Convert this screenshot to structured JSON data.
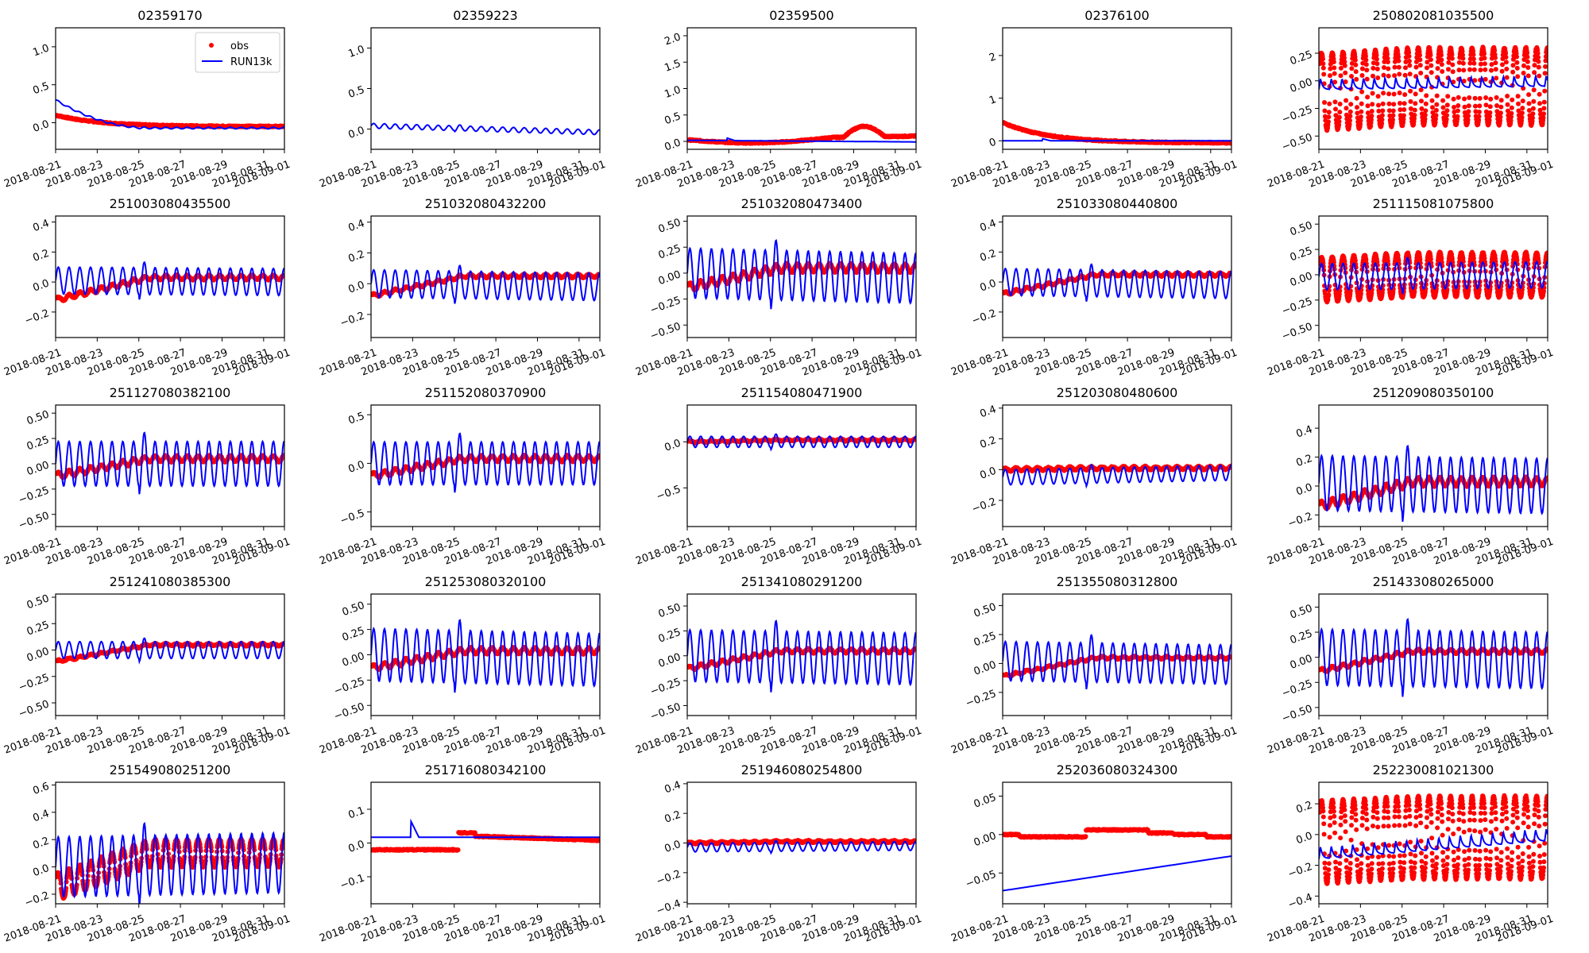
{
  "chart_data": {
    "type": "line",
    "layout": "5x5 grid of small multiples",
    "legend": {
      "placement": "upper-right of first panel",
      "entries": [
        {
          "name": "obs",
          "style": "red dots",
          "color": "#ff0000"
        },
        {
          "name": "RUN13k",
          "style": "blue line",
          "color": "#0000ff"
        }
      ]
    },
    "x_axis": {
      "range": [
        "2018-08-21",
        "2018-09-01"
      ],
      "tick_labels": [
        "2018-08-21",
        "2018-08-23",
        "2018-08-25",
        "2018-08-27",
        "2018-08-29",
        "2018-08-31",
        "2018-09-01"
      ],
      "tick_days": [
        0,
        2,
        4,
        6,
        8,
        10,
        11
      ]
    },
    "colors": {
      "obs": "#ff0000",
      "model": "#0000ff"
    },
    "panels": [
      {
        "title": "02359170",
        "ylim": [
          -0.35,
          1.25
        ],
        "yticks": [
          0.0,
          0.5,
          1.0
        ],
        "ytick_labels": [
          "0.0",
          "0.5",
          "1.0"
        ],
        "obs": {
          "start": 0.1,
          "end": -0.05,
          "amp": 0,
          "shape": "decay"
        },
        "model": {
          "start": 0.3,
          "end": -0.07,
          "amp": 0.01,
          "shape": "decay"
        },
        "legend": true
      },
      {
        "title": "02359223",
        "ylim": [
          -0.25,
          1.25
        ],
        "yticks": [
          0.0,
          0.5,
          1.0
        ],
        "ytick_labels": [
          "0.0",
          "0.5",
          "1.0"
        ],
        "obs": null,
        "model": {
          "start": 0.04,
          "end": -0.04,
          "amp": 0.03,
          "shape": "wave"
        }
      },
      {
        "title": "02359500",
        "ylim": [
          -0.15,
          2.15
        ],
        "yticks": [
          0.0,
          0.5,
          1.0,
          1.5,
          2.0
        ],
        "ytick_labels": [
          "0.0",
          "0.5",
          "1.0",
          "1.5",
          "2.0"
        ],
        "obs": {
          "start": 0.03,
          "end": 0.1,
          "amp": 0,
          "shape": "bump"
        },
        "model": {
          "start": 0.02,
          "end": -0.01,
          "amp": 0,
          "shape": "flat"
        }
      },
      {
        "title": "02376100",
        "ylim": [
          -0.2,
          2.65
        ],
        "yticks": [
          0,
          1,
          2
        ],
        "ytick_labels": [
          "0",
          "1",
          "2"
        ],
        "obs": {
          "start": 0.43,
          "end": -0.05,
          "amp": 0,
          "shape": "decay"
        },
        "model": {
          "start": 0.0,
          "end": 0.0,
          "amp": 0,
          "shape": "flat"
        }
      },
      {
        "title": "250802081035500",
        "ylim": [
          -0.62,
          0.48
        ],
        "yticks": [
          -0.5,
          -0.25,
          0.0,
          0.25
        ],
        "ytick_labels": [
          "−0.50",
          "−0.25",
          "0.00",
          "0.25"
        ],
        "obs": {
          "start": -0.1,
          "end": -0.05,
          "amp": 0.35,
          "shape": "tide"
        },
        "model": {
          "start": -0.03,
          "end": 0.0,
          "amp": 0.1,
          "shape": "spike"
        }
      },
      {
        "title": "251003080435500",
        "ylim": [
          -0.37,
          0.44
        ],
        "yticks": [
          -0.2,
          0.0,
          0.2,
          0.4
        ],
        "ytick_labels": [
          "−0.2",
          "0.0",
          "0.2",
          "0.4"
        ],
        "obs": {
          "start": -0.12,
          "end": 0.03,
          "amp": 0.015,
          "shape": "rise"
        },
        "model": {
          "start": 0.01,
          "end": 0.0,
          "amp": 0.09,
          "shape": "wave"
        }
      },
      {
        "title": "251032080432200",
        "ylim": [
          -0.35,
          0.44
        ],
        "yticks": [
          -0.2,
          0.0,
          0.2,
          0.4
        ],
        "ytick_labels": [
          "−0.2",
          "0.0",
          "0.2",
          "0.4"
        ],
        "obs": {
          "start": -0.08,
          "end": 0.05,
          "amp": 0.01,
          "shape": "rise"
        },
        "model": {
          "start": 0.0,
          "end": -0.02,
          "amp": 0.09,
          "shape": "wave"
        }
      },
      {
        "title": "251032080473400",
        "ylim": [
          -0.62,
          0.55
        ],
        "yticks": [
          -0.5,
          -0.25,
          0.0,
          0.25,
          0.5
        ],
        "ytick_labels": [
          "−0.50",
          "−0.25",
          "0.00",
          "0.25",
          "0.50"
        ],
        "obs": {
          "start": -0.14,
          "end": 0.05,
          "amp": 0.04,
          "shape": "rise"
        },
        "model": {
          "start": 0.0,
          "end": -0.05,
          "amp": 0.24,
          "shape": "wave"
        }
      },
      {
        "title": "251033080440800",
        "ylim": [
          -0.37,
          0.44
        ],
        "yticks": [
          -0.2,
          0.0,
          0.2,
          0.4
        ],
        "ytick_labels": [
          "−0.2",
          "0.0",
          "0.2",
          "0.4"
        ],
        "obs": {
          "start": -0.08,
          "end": 0.05,
          "amp": 0.01,
          "shape": "rise"
        },
        "model": {
          "start": 0.0,
          "end": -0.02,
          "amp": 0.09,
          "shape": "wave"
        }
      },
      {
        "title": "251115081075800",
        "ylim": [
          -0.62,
          0.58
        ],
        "yticks": [
          -0.5,
          -0.25,
          0.0,
          0.25,
          0.5
        ],
        "ytick_labels": [
          "−0.50",
          "−0.25",
          "0.00",
          "0.25",
          "0.50"
        ],
        "obs": {
          "start": -0.05,
          "end": 0.0,
          "amp": 0.22,
          "shape": "tide"
        },
        "model": {
          "start": -0.02,
          "end": 0.0,
          "amp": 0.13,
          "shape": "wave"
        }
      },
      {
        "title": "251127080382100",
        "ylim": [
          -0.62,
          0.58
        ],
        "yticks": [
          -0.5,
          -0.25,
          0.0,
          0.25,
          0.5
        ],
        "ytick_labels": [
          "−0.50",
          "−0.25",
          "0.00",
          "0.25",
          "0.50"
        ],
        "obs": {
          "start": -0.12,
          "end": 0.05,
          "amp": 0.03,
          "shape": "rise"
        },
        "model": {
          "start": 0.0,
          "end": 0.0,
          "amp": 0.22,
          "shape": "wave"
        }
      },
      {
        "title": "251152080370900",
        "ylim": [
          -0.65,
          0.6
        ],
        "yticks": [
          -0.5,
          0.0,
          0.5
        ],
        "ytick_labels": [
          "−0.5",
          "0.0",
          "0.5"
        ],
        "obs": {
          "start": -0.13,
          "end": 0.05,
          "amp": 0.03,
          "shape": "rise"
        },
        "model": {
          "start": 0.0,
          "end": 0.0,
          "amp": 0.22,
          "shape": "wave"
        }
      },
      {
        "title": "251154080471900",
        "ylim": [
          -0.92,
          0.4
        ],
        "yticks": [
          -0.5,
          0.0
        ],
        "ytick_labels": [
          "−0.5",
          "0.0"
        ],
        "obs": {
          "start": 0.0,
          "end": 0.02,
          "amp": 0.01,
          "shape": "rise"
        },
        "model": {
          "start": 0.0,
          "end": 0.0,
          "amp": 0.06,
          "shape": "wave"
        }
      },
      {
        "title": "251203080480600",
        "ylim": [
          -0.37,
          0.42
        ],
        "yticks": [
          -0.2,
          0.0,
          0.2,
          0.4
        ],
        "ytick_labels": [
          "−0.2",
          "0.0",
          "0.2",
          "0.4"
        ],
        "obs": {
          "start": 0.0,
          "end": 0.01,
          "amp": 0.01,
          "shape": "rise"
        },
        "model": {
          "start": -0.05,
          "end": -0.02,
          "amp": 0.05,
          "shape": "wave"
        }
      },
      {
        "title": "251209080350100",
        "ylim": [
          -0.28,
          0.56
        ],
        "yticks": [
          -0.2,
          0.0,
          0.2,
          0.4
        ],
        "ytick_labels": [
          "−0.2",
          "0.0",
          "0.2",
          "0.4"
        ],
        "obs": {
          "start": -0.14,
          "end": 0.03,
          "amp": 0.03,
          "shape": "rise"
        },
        "model": {
          "start": 0.02,
          "end": 0.0,
          "amp": 0.19,
          "shape": "wave"
        }
      },
      {
        "title": "251241080385300",
        "ylim": [
          -0.62,
          0.53
        ],
        "yticks": [
          -0.5,
          -0.25,
          0.0,
          0.25,
          0.5
        ],
        "ytick_labels": [
          "−0.50",
          "−0.25",
          "0.00",
          "0.25",
          "0.50"
        ],
        "obs": {
          "start": -0.11,
          "end": 0.05,
          "amp": 0.01,
          "shape": "rise"
        },
        "model": {
          "start": 0.0,
          "end": 0.0,
          "amp": 0.08,
          "shape": "wave"
        }
      },
      {
        "title": "251253080320100",
        "ylim": [
          -0.6,
          0.6
        ],
        "yticks": [
          -0.5,
          -0.25,
          0.0,
          0.25,
          0.5
        ],
        "ytick_labels": [
          "−0.50",
          "−0.25",
          "0.00",
          "0.25",
          "0.50"
        ],
        "obs": {
          "start": -0.13,
          "end": 0.04,
          "amp": 0.03,
          "shape": "rise"
        },
        "model": {
          "start": 0.0,
          "end": -0.05,
          "amp": 0.26,
          "shape": "wave"
        }
      },
      {
        "title": "251341080291200",
        "ylim": [
          -0.6,
          0.62
        ],
        "yticks": [
          -0.5,
          -0.25,
          0.0,
          0.25,
          0.5
        ],
        "ytick_labels": [
          "−0.50",
          "−0.25",
          "0.00",
          "0.25",
          "0.50"
        ],
        "obs": {
          "start": -0.13,
          "end": 0.05,
          "amp": 0.02,
          "shape": "rise"
        },
        "model": {
          "start": 0.0,
          "end": -0.03,
          "amp": 0.26,
          "shape": "wave"
        }
      },
      {
        "title": "251355080312800",
        "ylim": [
          -0.45,
          0.6
        ],
        "yticks": [
          -0.25,
          0.0,
          0.25,
          0.5
        ],
        "ytick_labels": [
          "−0.25",
          "0.00",
          "0.25",
          "0.50"
        ],
        "obs": {
          "start": -0.11,
          "end": 0.05,
          "amp": 0.01,
          "shape": "rise"
        },
        "model": {
          "start": 0.02,
          "end": -0.01,
          "amp": 0.17,
          "shape": "wave"
        }
      },
      {
        "title": "251433080265000",
        "ylim": [
          -0.58,
          0.63
        ],
        "yticks": [
          -0.5,
          -0.25,
          0.0,
          0.25,
          0.5
        ],
        "ytick_labels": [
          "−0.50",
          "−0.25",
          "0.00",
          "0.25",
          "0.50"
        ],
        "obs": {
          "start": -0.14,
          "end": 0.06,
          "amp": 0.02,
          "shape": "rise"
        },
        "model": {
          "start": 0.0,
          "end": -0.03,
          "amp": 0.28,
          "shape": "wave"
        }
      },
      {
        "title": "251549080251200",
        "ylim": [
          -0.27,
          0.62
        ],
        "yticks": [
          -0.2,
          0.0,
          0.2,
          0.4,
          0.6
        ],
        "ytick_labels": [
          "−0.2",
          "0.0",
          "0.2",
          "0.4",
          "0.6"
        ],
        "obs": {
          "start": -0.15,
          "end": 0.1,
          "amp": 0.1,
          "shape": "tide"
        },
        "model": {
          "start": 0.0,
          "end": 0.03,
          "amp": 0.22,
          "shape": "wave"
        }
      },
      {
        "title": "251716080342100",
        "ylim": [
          -0.18,
          0.18
        ],
        "yticks": [
          -0.1,
          0.0,
          0.1
        ],
        "ytick_labels": [
          "−0.1",
          "0.0",
          "0.1"
        ],
        "obs": {
          "start": -0.02,
          "end": 0.01,
          "amp": 0,
          "shape": "step"
        },
        "model": {
          "start": 0.017,
          "end": 0.017,
          "amp": 0,
          "shape": "flat"
        }
      },
      {
        "title": "251946080254800",
        "ylim": [
          -0.41,
          0.41
        ],
        "yticks": [
          -0.4,
          -0.2,
          0.0,
          0.2,
          0.4
        ],
        "ytick_labels": [
          "−0.4",
          "−0.2",
          "0.0",
          "0.2",
          "0.4"
        ],
        "obs": {
          "start": 0.0,
          "end": 0.01,
          "amp": 0.005,
          "shape": "rise"
        },
        "model": {
          "start": -0.03,
          "end": -0.02,
          "amp": 0.03,
          "shape": "wave"
        }
      },
      {
        "title": "252036080324300",
        "ylim": [
          -0.09,
          0.068
        ],
        "yticks": [
          -0.05,
          0.0,
          0.05
        ],
        "ytick_labels": [
          "−0.05",
          "0.00",
          "0.05"
        ],
        "obs": {
          "start": 0.0,
          "end": 0.0,
          "amp": 0,
          "shape": "steps"
        },
        "model": {
          "start": -0.073,
          "end": -0.028,
          "amp": 0,
          "shape": "rise"
        }
      },
      {
        "title": "252230081021300",
        "ylim": [
          -0.45,
          0.34
        ],
        "yticks": [
          -0.4,
          -0.2,
          0.0,
          0.2
        ],
        "ytick_labels": [
          "−0.4",
          "−0.2",
          "0.0",
          "0.2"
        ],
        "obs": {
          "start": -0.05,
          "end": -0.02,
          "amp": 0.27,
          "shape": "tide"
        },
        "model": {
          "start": -0.12,
          "end": 0.0,
          "amp": 0.08,
          "shape": "spike"
        }
      }
    ]
  }
}
